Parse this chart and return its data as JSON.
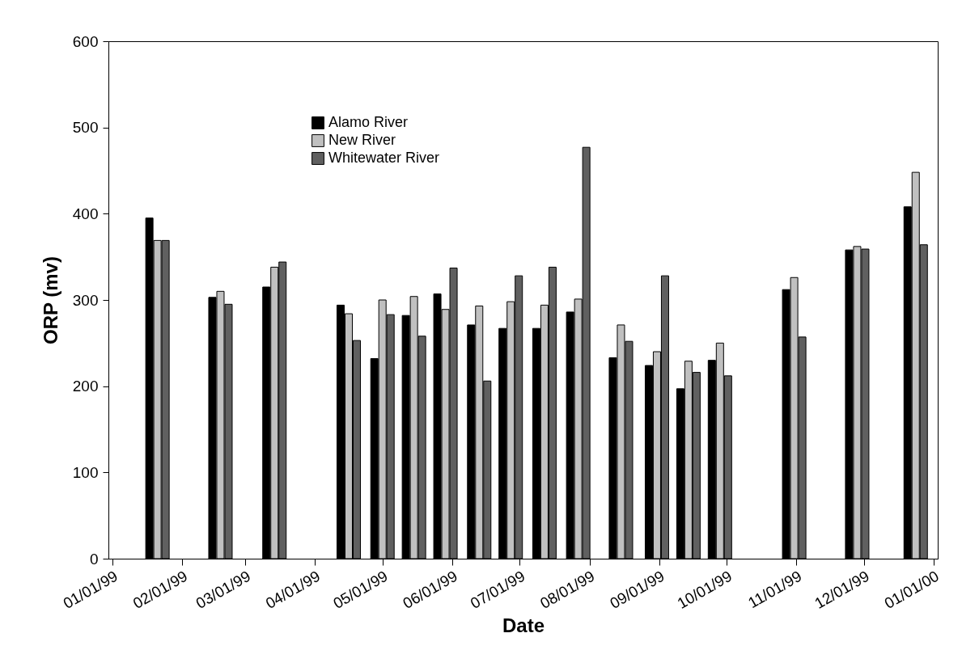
{
  "chart_data": {
    "type": "bar",
    "xlabel": "Date",
    "ylabel": "ORP (mv)",
    "x": [
      "1999-01-21",
      "1999-02-18",
      "1999-03-14",
      "1999-04-16",
      "1999-05-01",
      "1999-05-15",
      "1999-05-29",
      "1999-06-13",
      "1999-06-27",
      "1999-07-12",
      "1999-07-27",
      "1999-08-15",
      "1999-08-31",
      "1999-09-14",
      "1999-09-28",
      "1999-10-31",
      "1999-11-28",
      "1999-12-24"
    ],
    "series": [
      {
        "name": "Alamo River",
        "color": "#000000",
        "values": [
          395,
          303,
          315,
          294,
          232,
          282,
          307,
          271,
          267,
          267,
          286,
          233,
          224,
          197,
          230,
          312,
          358,
          408
        ]
      },
      {
        "name": "New River",
        "color": "#c0c0c0",
        "values": [
          369,
          310,
          338,
          284,
          300,
          304,
          289,
          293,
          298,
          294,
          301,
          271,
          240,
          229,
          250,
          326,
          362,
          448
        ]
      },
      {
        "name": "Whitewater River",
        "color": "#606060",
        "values": [
          369,
          295,
          344,
          253,
          283,
          258,
          337,
          206,
          328,
          338,
          477,
          252,
          328,
          216,
          212,
          257,
          359,
          364
        ]
      }
    ],
    "xlim": [
      "1999-01-01",
      "2000-01-01"
    ],
    "xticks": [
      {
        "value": "1999-01-01",
        "label": "01/01/99"
      },
      {
        "value": "1999-02-01",
        "label": "02/01/99"
      },
      {
        "value": "1999-03-01",
        "label": "03/01/99"
      },
      {
        "value": "1999-04-01",
        "label": "04/01/99"
      },
      {
        "value": "1999-05-01",
        "label": "05/01/99"
      },
      {
        "value": "1999-06-01",
        "label": "06/01/99"
      },
      {
        "value": "1999-07-01",
        "label": "07/01/99"
      },
      {
        "value": "1999-08-01",
        "label": "08/01/99"
      },
      {
        "value": "1999-09-01",
        "label": "09/01/99"
      },
      {
        "value": "1999-10-01",
        "label": "10/01/99"
      },
      {
        "value": "1999-11-01",
        "label": "11/01/99"
      },
      {
        "value": "1999-12-01",
        "label": "12/01/99"
      },
      {
        "value": "2000-01-01",
        "label": "01/01/00"
      }
    ],
    "ylim": [
      0,
      600
    ],
    "yticks": [
      0,
      100,
      200,
      300,
      400,
      500,
      600
    ],
    "legend": "top left",
    "grid": false
  }
}
